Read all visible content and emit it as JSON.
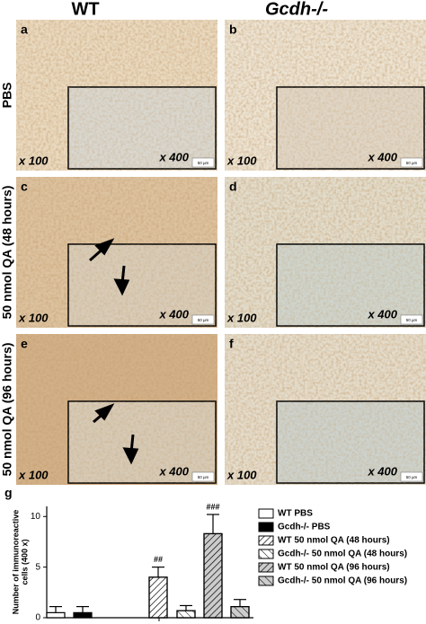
{
  "columns": [
    "WT",
    "Gcdh-/-"
  ],
  "rows": [
    "PBS",
    "50 nmol QA (48 hours)",
    "50 nmol QA (96 hours)"
  ],
  "panels": [
    {
      "label": "a",
      "low_mag": "x 100",
      "high_mag": "x 400",
      "scale_bar": "50 µm"
    },
    {
      "label": "b",
      "low_mag": "x 100",
      "high_mag": "x 400",
      "scale_bar": "50 µm"
    },
    {
      "label": "c",
      "low_mag": "x 100",
      "high_mag": "x 400",
      "scale_bar": "50 µm"
    },
    {
      "label": "d",
      "low_mag": "x 100",
      "high_mag": "x 400",
      "scale_bar": "50 µm"
    },
    {
      "label": "e",
      "low_mag": "x 100",
      "high_mag": "x 400",
      "scale_bar": "50 µm"
    },
    {
      "label": "f",
      "low_mag": "x 100",
      "high_mag": "x 400",
      "scale_bar": "50 µm"
    }
  ],
  "chart_label": "g",
  "chart_data": {
    "type": "bar",
    "ylabel": [
      "Number of immunoreactive",
      "cells (400 x)"
    ],
    "ylim": [
      0,
      11
    ],
    "yticks": [
      0,
      5,
      10
    ],
    "series": [
      {
        "name": "WT PBS",
        "color": "#ffffff",
        "pattern": "none",
        "values": [
          0.5
        ],
        "errors": [
          0.6
        ]
      },
      {
        "name": "Gcdh-/- PBS",
        "color": "#000000",
        "pattern": "none",
        "values": [
          0.5
        ],
        "errors": [
          0.6
        ]
      },
      {
        "name": "WT 50 nmol QA (48 hours)",
        "color": "#ffffff",
        "pattern": "forward",
        "values": [
          4.0
        ],
        "errors": [
          1.0
        ],
        "annotation": "##"
      },
      {
        "name": "Gcdh-/- 50 nmol QA (48 hours)",
        "color": "#ffffff",
        "pattern": "back",
        "values": [
          0.7
        ],
        "errors": [
          0.5
        ]
      },
      {
        "name": "WT 50 nmol QA (96 hours)",
        "color": "#cccccc",
        "pattern": "forward",
        "values": [
          8.3
        ],
        "errors": [
          1.9
        ],
        "annotation": "###"
      },
      {
        "name": "Gcdh-/- 50 nmol QA (96 hours)",
        "color": "#cccccc",
        "pattern": "back",
        "values": [
          1.1
        ],
        "errors": [
          0.7
        ]
      }
    ]
  }
}
